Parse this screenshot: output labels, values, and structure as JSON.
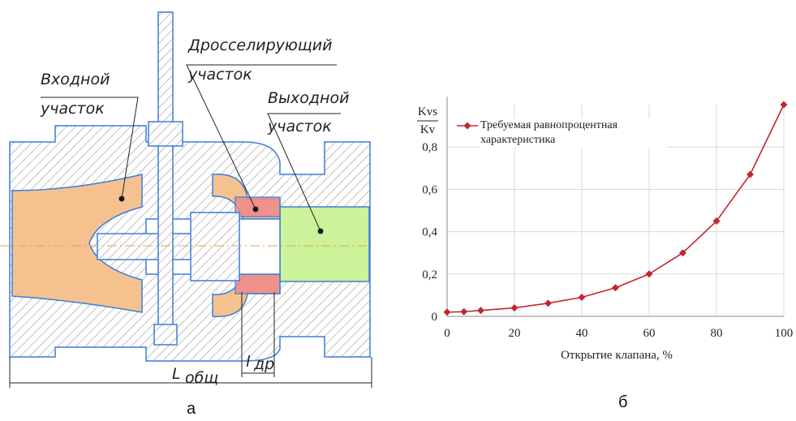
{
  "diagram": {
    "labels": {
      "inlet": [
        "Входной",
        "участок"
      ],
      "throttle": [
        "Дросселирующий",
        "участок"
      ],
      "outlet": [
        "Выходной",
        "участок"
      ],
      "total_length": {
        "symbol": "L",
        "subscript": "общ"
      },
      "throttle_length": {
        "symbol": "l",
        "subscript": "др"
      }
    },
    "caption": "а"
  },
  "chart_data": {
    "type": "line",
    "caption": "б",
    "y_label_top": "Kvs",
    "y_label_bottom": "Kv",
    "x_label": "Открытие клапана, %",
    "x": [
      0,
      5,
      10,
      20,
      30,
      40,
      50,
      60,
      70,
      80,
      90,
      100
    ],
    "series": [
      {
        "name": "Требуемая равнопроцентная характеристика",
        "color": "#c0282d",
        "values": [
          0.02,
          0.022,
          0.028,
          0.04,
          0.062,
          0.09,
          0.135,
          0.2,
          0.3,
          0.45,
          0.67,
          1.0
        ]
      }
    ],
    "xlim": [
      0,
      100
    ],
    "xticks": [
      0,
      20,
      40,
      60,
      80,
      100
    ],
    "ylim": [
      0,
      1
    ],
    "yticks": [
      0,
      {
        "value": 0.2,
        "label": "0,2"
      },
      {
        "value": 0.4,
        "label": "0,4"
      },
      {
        "value": 0.6,
        "label": "0,6"
      },
      {
        "value": 0.8,
        "label": "0,8"
      }
    ],
    "grid": true
  }
}
